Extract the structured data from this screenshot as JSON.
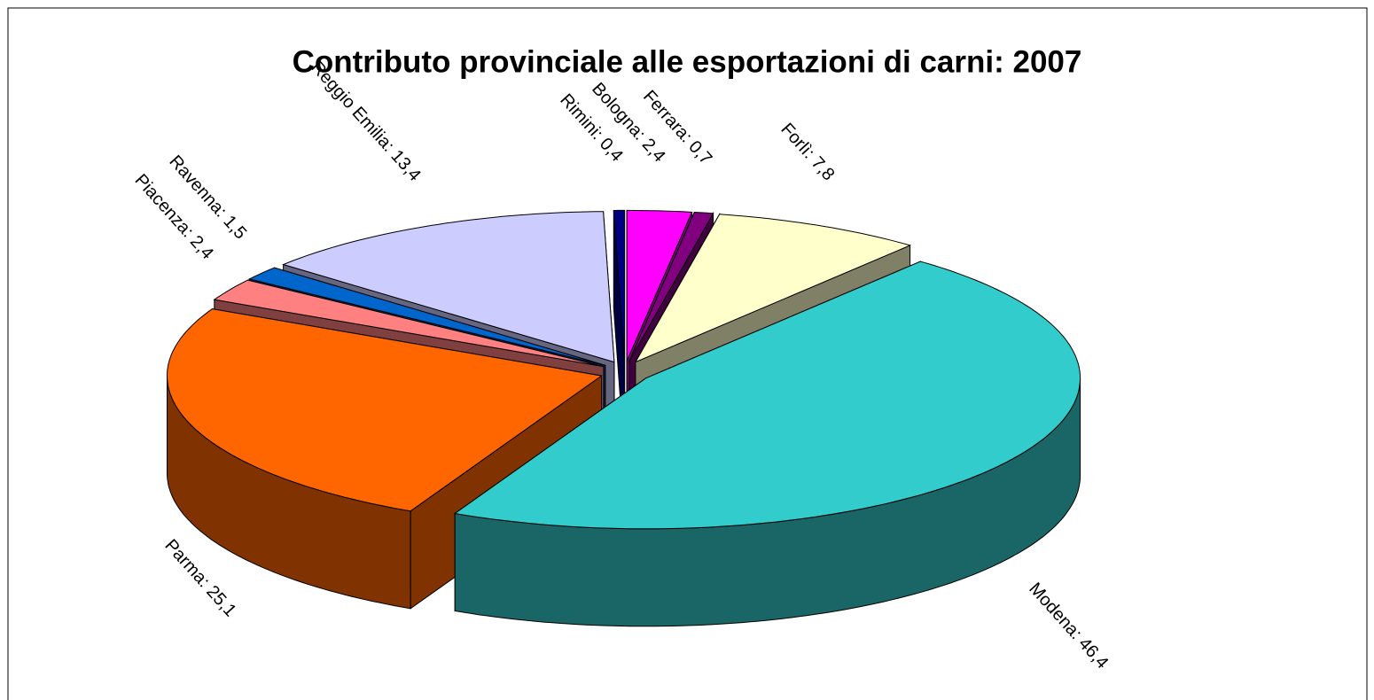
{
  "chart_data": {
    "type": "pie3d",
    "title": "Contributo provinciale alle esportazioni di carni: 2007",
    "values": [
      2.4,
      0.7,
      7.8,
      46.4,
      25.1,
      2.4,
      1.5,
      13.4,
      0.4
    ],
    "value_labels": [
      "Bologna: 2,4",
      "Ferrara: 0,7",
      "Forlì: 7,8",
      "Modena: 46,4",
      "Parma: 25,1",
      "Piacenza: 2,4",
      "Ravenna: 1,5",
      "Reggio Emilia: 13,4",
      "Rimini: 0,4"
    ],
    "colors": [
      "#ff00ff",
      "#800080",
      "#ffffcc",
      "#33cccc",
      "#ff6600",
      "#ff8080",
      "#0066cc",
      "#ccccff",
      "#000080"
    ]
  }
}
